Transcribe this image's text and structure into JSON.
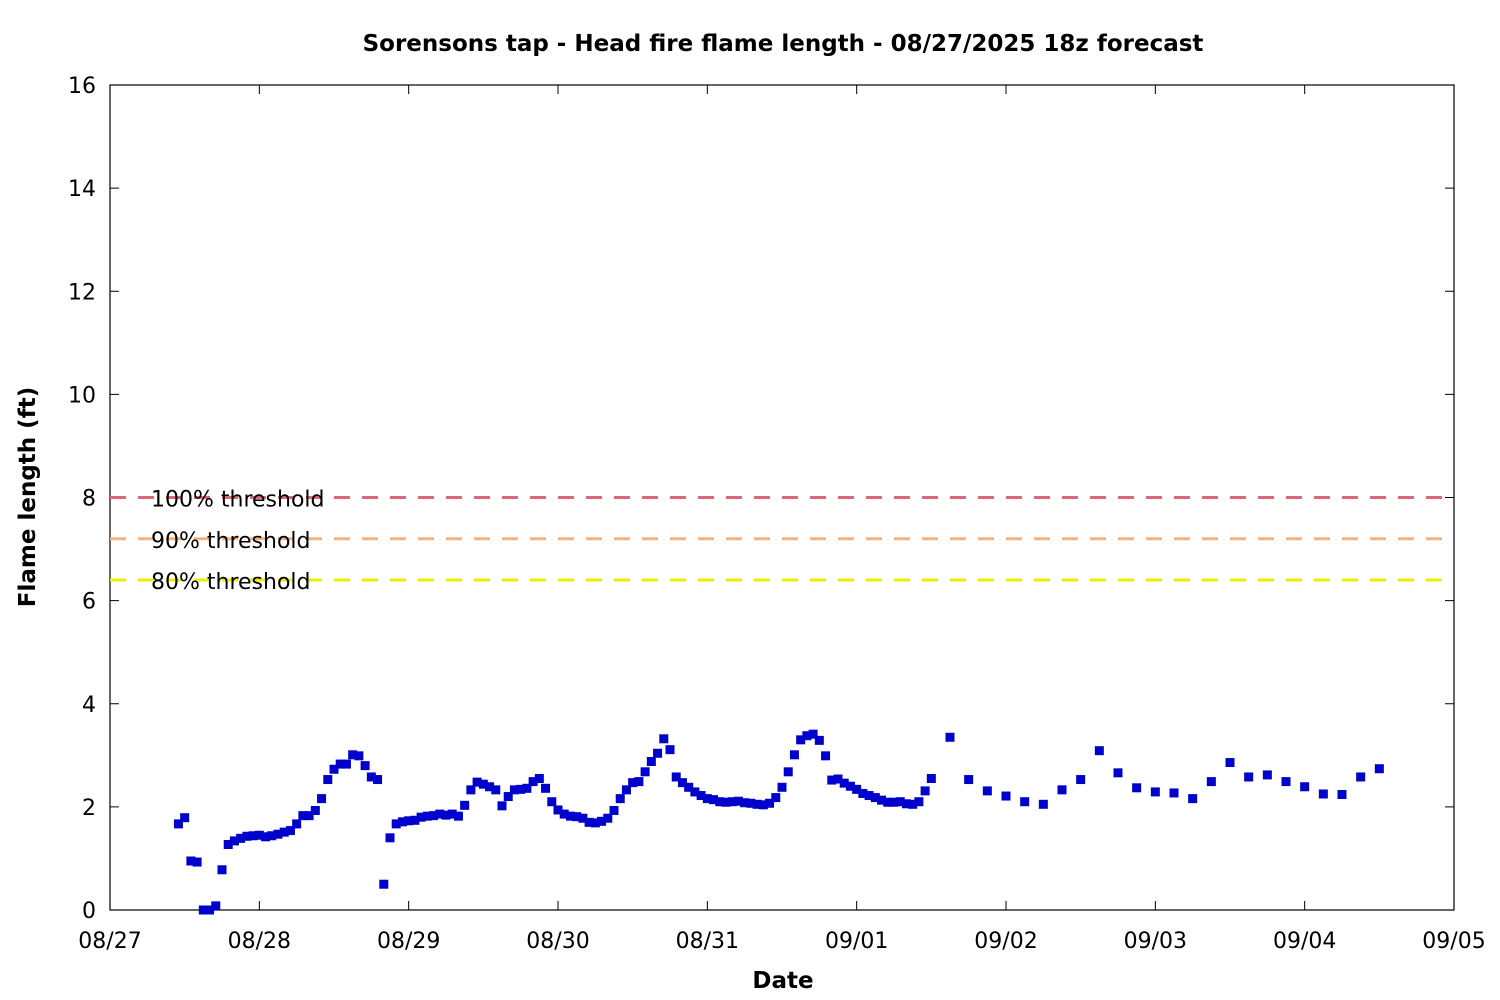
{
  "chart_data": {
    "type": "scatter",
    "title": "Sorensons tap - Head fire flame length - 08/27/2025 18z forecast",
    "xlabel": "Date",
    "ylabel": "Flame length (ft)",
    "x_domain": [
      "08/27",
      "09/05"
    ],
    "ylim": [
      0,
      16
    ],
    "x_ticks": [
      "08/27",
      "08/28",
      "08/29",
      "08/30",
      "08/31",
      "09/01",
      "09/02",
      "09/03",
      "09/04",
      "09/05"
    ],
    "y_ticks": [
      "0",
      "2",
      "4",
      "6",
      "8",
      "10",
      "12",
      "14",
      "16"
    ],
    "marker_color": "#0000cc",
    "thresholds": [
      {
        "label": "100% threshold",
        "value": 8.0,
        "color": "#dd6677"
      },
      {
        "label": "90% threshold",
        "value": 7.2,
        "color": "#f5b27e"
      },
      {
        "label": "80% threshold",
        "value": 6.4,
        "color": "#eeee00"
      }
    ],
    "series": [
      {
        "x_format": "MM/DD HH:MM",
        "points": [
          [
            "08/27 11:00",
            1.67
          ],
          [
            "08/27 12:00",
            1.79
          ],
          [
            "08/27 13:00",
            0.95
          ],
          [
            "08/27 14:00",
            0.93
          ],
          [
            "08/27 15:00",
            0.0
          ],
          [
            "08/27 16:00",
            0.0
          ],
          [
            "08/27 17:00",
            0.08
          ],
          [
            "08/27 18:00",
            0.78
          ],
          [
            "08/27 19:00",
            1.27
          ],
          [
            "08/27 20:00",
            1.34
          ],
          [
            "08/27 21:00",
            1.39
          ],
          [
            "08/27 22:00",
            1.43
          ],
          [
            "08/27 23:00",
            1.44
          ],
          [
            "08/28 00:00",
            1.45
          ],
          [
            "08/28 01:00",
            1.42
          ],
          [
            "08/28 02:00",
            1.44
          ],
          [
            "08/28 03:00",
            1.47
          ],
          [
            "08/28 04:00",
            1.51
          ],
          [
            "08/28 05:00",
            1.54
          ],
          [
            "08/28 06:00",
            1.67
          ],
          [
            "08/28 07:00",
            1.83
          ],
          [
            "08/28 08:00",
            1.83
          ],
          [
            "08/28 09:00",
            1.93
          ],
          [
            "08/28 10:00",
            2.16
          ],
          [
            "08/28 11:00",
            2.53
          ],
          [
            "08/28 12:00",
            2.73
          ],
          [
            "08/28 13:00",
            2.83
          ],
          [
            "08/28 14:00",
            2.83
          ],
          [
            "08/28 15:00",
            3.01
          ],
          [
            "08/28 16:00",
            2.99
          ],
          [
            "08/28 17:00",
            2.8
          ],
          [
            "08/28 18:00",
            2.58
          ],
          [
            "08/28 19:00",
            2.53
          ],
          [
            "08/28 20:00",
            0.5
          ],
          [
            "08/28 21:00",
            1.4
          ],
          [
            "08/28 22:00",
            1.67
          ],
          [
            "08/28 23:00",
            1.71
          ],
          [
            "08/29 00:00",
            1.73
          ],
          [
            "08/29 01:00",
            1.74
          ],
          [
            "08/29 02:00",
            1.8
          ],
          [
            "08/29 03:00",
            1.82
          ],
          [
            "08/29 04:00",
            1.83
          ],
          [
            "08/29 05:00",
            1.86
          ],
          [
            "08/29 06:00",
            1.84
          ],
          [
            "08/29 07:00",
            1.86
          ],
          [
            "08/29 08:00",
            1.82
          ],
          [
            "08/29 09:00",
            2.03
          ],
          [
            "08/29 10:00",
            2.33
          ],
          [
            "08/29 11:00",
            2.48
          ],
          [
            "08/29 12:00",
            2.44
          ],
          [
            "08/29 13:00",
            2.39
          ],
          [
            "08/29 14:00",
            2.33
          ],
          [
            "08/29 15:00",
            2.02
          ],
          [
            "08/29 16:00",
            2.2
          ],
          [
            "08/29 17:00",
            2.33
          ],
          [
            "08/29 18:00",
            2.34
          ],
          [
            "08/29 19:00",
            2.36
          ],
          [
            "08/29 20:00",
            2.49
          ],
          [
            "08/29 21:00",
            2.55
          ],
          [
            "08/29 22:00",
            2.36
          ],
          [
            "08/29 23:00",
            2.1
          ],
          [
            "08/30 00:00",
            1.94
          ],
          [
            "08/30 01:00",
            1.86
          ],
          [
            "08/30 02:00",
            1.82
          ],
          [
            "08/30 03:00",
            1.81
          ],
          [
            "08/30 04:00",
            1.78
          ],
          [
            "08/30 05:00",
            1.7
          ],
          [
            "08/30 06:00",
            1.69
          ],
          [
            "08/30 07:00",
            1.72
          ],
          [
            "08/30 08:00",
            1.78
          ],
          [
            "08/30 09:00",
            1.93
          ],
          [
            "08/30 10:00",
            2.16
          ],
          [
            "08/30 11:00",
            2.33
          ],
          [
            "08/30 12:00",
            2.47
          ],
          [
            "08/30 13:00",
            2.49
          ],
          [
            "08/30 14:00",
            2.68
          ],
          [
            "08/30 15:00",
            2.88
          ],
          [
            "08/30 16:00",
            3.04
          ],
          [
            "08/30 17:00",
            3.32
          ],
          [
            "08/30 18:00",
            3.11
          ],
          [
            "08/30 19:00",
            2.58
          ],
          [
            "08/30 20:00",
            2.47
          ],
          [
            "08/30 21:00",
            2.38
          ],
          [
            "08/30 22:00",
            2.29
          ],
          [
            "08/30 23:00",
            2.22
          ],
          [
            "08/31 00:00",
            2.16
          ],
          [
            "08/31 01:00",
            2.14
          ],
          [
            "08/31 02:00",
            2.1
          ],
          [
            "08/31 03:00",
            2.09
          ],
          [
            "08/31 04:00",
            2.1
          ],
          [
            "08/31 05:00",
            2.11
          ],
          [
            "08/31 06:00",
            2.08
          ],
          [
            "08/31 07:00",
            2.07
          ],
          [
            "08/31 08:00",
            2.05
          ],
          [
            "08/31 09:00",
            2.04
          ],
          [
            "08/31 10:00",
            2.07
          ],
          [
            "08/31 11:00",
            2.18
          ],
          [
            "08/31 12:00",
            2.38
          ],
          [
            "08/31 13:00",
            2.68
          ],
          [
            "08/31 14:00",
            3.01
          ],
          [
            "08/31 15:00",
            3.3
          ],
          [
            "08/31 16:00",
            3.38
          ],
          [
            "08/31 17:00",
            3.41
          ],
          [
            "08/31 18:00",
            3.29
          ],
          [
            "08/31 19:00",
            2.99
          ],
          [
            "08/31 20:00",
            2.52
          ],
          [
            "08/31 21:00",
            2.54
          ],
          [
            "08/31 22:00",
            2.46
          ],
          [
            "08/31 23:00",
            2.4
          ],
          [
            "09/01 00:00",
            2.34
          ],
          [
            "09/01 01:00",
            2.26
          ],
          [
            "09/01 02:00",
            2.22
          ],
          [
            "09/01 03:00",
            2.18
          ],
          [
            "09/01 04:00",
            2.13
          ],
          [
            "09/01 05:00",
            2.09
          ],
          [
            "09/01 06:00",
            2.09
          ],
          [
            "09/01 07:00",
            2.1
          ],
          [
            "09/01 08:00",
            2.06
          ],
          [
            "09/01 09:00",
            2.05
          ],
          [
            "09/01 10:00",
            2.1
          ],
          [
            "09/01 11:00",
            2.31
          ],
          [
            "09/01 12:00",
            2.55
          ],
          [
            "09/01 15:00",
            3.35
          ],
          [
            "09/01 18:00",
            2.53
          ],
          [
            "09/01 21:00",
            2.31
          ],
          [
            "09/02 00:00",
            2.21
          ],
          [
            "09/02 03:00",
            2.1
          ],
          [
            "09/02 06:00",
            2.05
          ],
          [
            "09/02 09:00",
            2.33
          ],
          [
            "09/02 12:00",
            2.53
          ],
          [
            "09/02 15:00",
            3.09
          ],
          [
            "09/02 18:00",
            2.66
          ],
          [
            "09/02 21:00",
            2.37
          ],
          [
            "09/03 00:00",
            2.29
          ],
          [
            "09/03 03:00",
            2.27
          ],
          [
            "09/03 06:00",
            2.16
          ],
          [
            "09/03 09:00",
            2.49
          ],
          [
            "09/03 12:00",
            2.86
          ],
          [
            "09/03 15:00",
            2.58
          ],
          [
            "09/03 18:00",
            2.62
          ],
          [
            "09/03 21:00",
            2.49
          ],
          [
            "09/04 00:00",
            2.39
          ],
          [
            "09/04 03:00",
            2.25
          ],
          [
            "09/04 06:00",
            2.24
          ],
          [
            "09/04 09:00",
            2.58
          ],
          [
            "09/04 12:00",
            2.74
          ]
        ]
      }
    ]
  }
}
